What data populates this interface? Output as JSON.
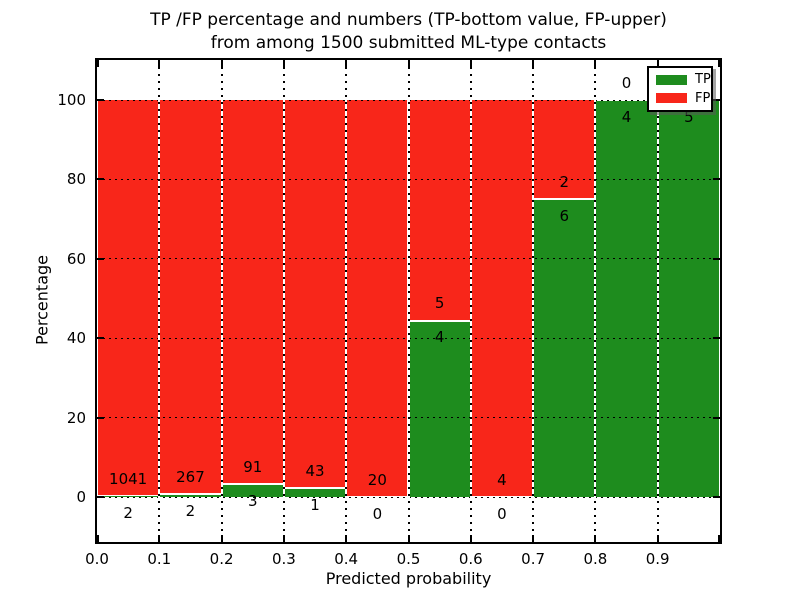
{
  "title": {
    "line1": "TP /FP percentage and numbers (TP-bottom value, FP-upper)",
    "line2": "from among 1500 submitted ML-type contacts"
  },
  "axes": {
    "xlabel": "Predicted probability",
    "ylabel": "Percentage",
    "x_tick_labels": [
      "0.0",
      "0.1",
      "0.2",
      "0.3",
      "0.4",
      "0.5",
      "0.6",
      "0.7",
      "0.8",
      "0.9"
    ],
    "y_tick_labels": [
      "0",
      "20",
      "40",
      "60",
      "80",
      "100"
    ],
    "y_tick_values": [
      0,
      20,
      40,
      60,
      80,
      100
    ]
  },
  "legend": {
    "position": "upper right",
    "items": [
      {
        "label": "TP",
        "color": "#1e8c1e"
      },
      {
        "label": "FP",
        "color": "#f8261a"
      }
    ]
  },
  "chart_data": {
    "type": "bar",
    "stacked": true,
    "normalized_to_percent": true,
    "title": "TP /FP percentage and numbers (TP-bottom value, FP-upper) from among 1500 submitted ML-type contacts",
    "xlabel": "Predicted probability",
    "ylabel": "Percentage",
    "total_contacts": 1500,
    "categories": [
      "0.0-0.1",
      "0.1-0.2",
      "0.2-0.3",
      "0.3-0.4",
      "0.4-0.5",
      "0.5-0.6",
      "0.6-0.7",
      "0.7-0.8",
      "0.8-0.9",
      "0.9-1.0"
    ],
    "bin_starts": [
      0.0,
      0.1,
      0.2,
      0.3,
      0.4,
      0.5,
      0.6,
      0.7,
      0.8,
      0.9
    ],
    "bin_width": 0.1,
    "series": [
      {
        "name": "TP",
        "color": "#1e8c1e",
        "counts": [
          2,
          2,
          3,
          1,
          0,
          4,
          0,
          6,
          4,
          5
        ]
      },
      {
        "name": "FP",
        "color": "#f8261a",
        "counts": [
          1041,
          267,
          91,
          43,
          20,
          5,
          4,
          2,
          0,
          0
        ]
      }
    ],
    "tp_percentages": [
      0.19,
      0.74,
      3.19,
      2.27,
      0.0,
      44.44,
      0.0,
      75.0,
      100.0,
      100.0
    ],
    "fp_percentages": [
      99.81,
      99.26,
      96.81,
      97.73,
      100.0,
      55.56,
      100.0,
      25.0,
      0.0,
      0.0
    ],
    "xlim": [
      0.0,
      1.0
    ],
    "ylim": [
      -11.3,
      110.6
    ],
    "grid": true,
    "grid_style": "dotted"
  }
}
